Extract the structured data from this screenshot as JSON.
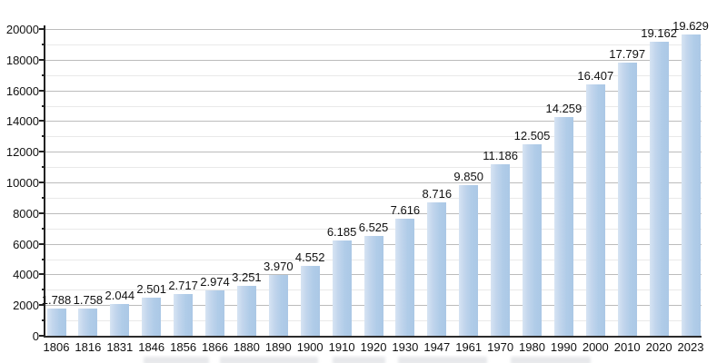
{
  "chart_data": {
    "type": "bar",
    "categories": [
      "1806",
      "1816",
      "1831",
      "1846",
      "1856",
      "1866",
      "1880",
      "1890",
      "1900",
      "1910",
      "1920",
      "1930",
      "1947",
      "1961",
      "1970",
      "1980",
      "1990",
      "2000",
      "2010",
      "2020",
      "2023"
    ],
    "values": [
      1788,
      1758,
      2044,
      2501,
      2717,
      2974,
      3251,
      3970,
      4552,
      6185,
      6525,
      7616,
      8716,
      9850,
      11186,
      12505,
      14259,
      16407,
      17797,
      19162,
      19629
    ],
    "value_labels": [
      "1.788",
      "1.758",
      "2.044",
      "2.501",
      "2.717",
      "2.974",
      "3.251",
      "3.970",
      "4.552",
      "6.185",
      "6.525",
      "7.616",
      "8.716",
      "9.850",
      "11.186",
      "12.505",
      "14.259",
      "16.407",
      "17.797",
      "19.162",
      "19.629"
    ],
    "ytick_labels": [
      "0",
      "2000",
      "4000",
      "6000",
      "8000",
      "10000",
      "12000",
      "14000",
      "16000",
      "18000",
      "20000"
    ],
    "ylim": [
      0,
      20000
    ],
    "ytick_step": 2000,
    "minor_tick_step": 1000,
    "grid": true,
    "legend": "none",
    "xlabel": "",
    "ylabel": "",
    "colors": {
      "bar_fill": "#b0cce8",
      "bar_fill_light": "#d7e4f3",
      "axis": "#222222",
      "grid_major": "#bcbcbc",
      "grid_minor": "#e9e9e9",
      "text": "#111111",
      "background": "#ffffff"
    }
  }
}
